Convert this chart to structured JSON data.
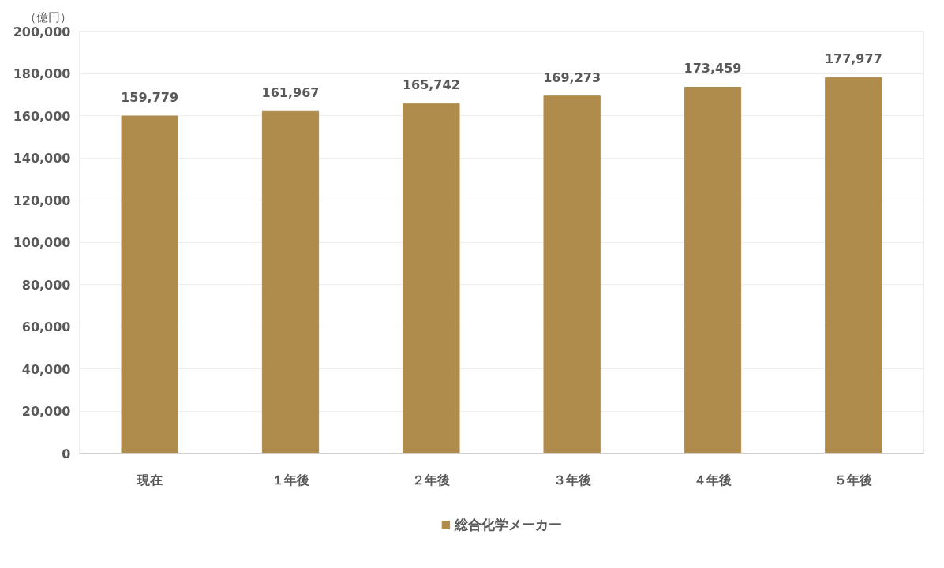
{
  "chart_data": {
    "type": "bar",
    "ylabel": "（億円）",
    "categories": [
      "現在",
      "１年後",
      "２年後",
      "３年後",
      "４年後",
      "５年後"
    ],
    "series": [
      {
        "name": "総合化学メーカー",
        "color": "#b08c4c",
        "values": [
          159779,
          161967,
          165742,
          169273,
          173459,
          177977
        ],
        "value_labels": [
          "159,779",
          "161,967",
          "165,742",
          "169,273",
          "173,459",
          "177,977"
        ]
      }
    ],
    "ylim": [
      0,
      200000
    ],
    "yticks": [
      {
        "value": 0,
        "label": "0"
      },
      {
        "value": 20000,
        "label": "20,000"
      },
      {
        "value": 40000,
        "label": "40,000"
      },
      {
        "value": 60000,
        "label": "60,000"
      },
      {
        "value": 80000,
        "label": "80,000"
      },
      {
        "value": 100000,
        "label": "100,000"
      },
      {
        "value": 120000,
        "label": "120,000"
      },
      {
        "value": 140000,
        "label": "140,000"
      },
      {
        "value": 160000,
        "label": "160,000"
      },
      {
        "value": 180000,
        "label": "180,000"
      },
      {
        "value": 200000,
        "label": "200,000"
      }
    ],
    "grid": "y",
    "legend": "bottom"
  }
}
